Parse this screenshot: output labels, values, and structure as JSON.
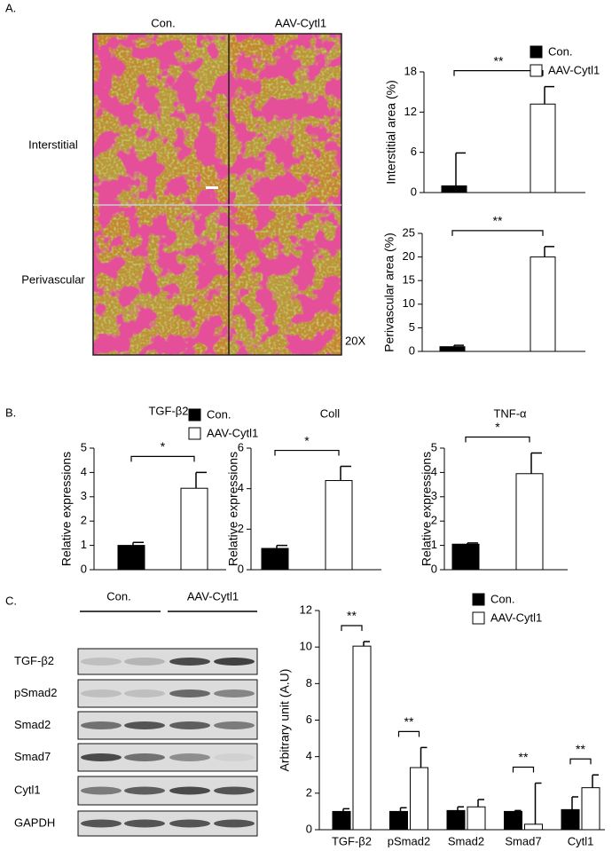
{
  "figure": {
    "panel_labels": [
      "A.",
      "B.",
      "C."
    ],
    "image_columns": [
      "Con.",
      "AAV-Cytl1"
    ],
    "image_rows": [
      "Interstitial",
      "Perivascular"
    ],
    "magnification": "20X",
    "blot_groups": [
      "Con.",
      "AAV-Cytl1"
    ],
    "blot_rows": [
      "TGF-β2",
      "pSmad2",
      "Smad2",
      "Smad7",
      "Cytl1",
      "GAPDH"
    ]
  },
  "chart_data": [
    {
      "type": "bar",
      "y_label": "Interstitial area (%)",
      "categories": [
        null
      ],
      "series": [
        {
          "name": "Con.",
          "color": "#000000",
          "values": [
            1
          ],
          "errors": [
            4.9
          ]
        },
        {
          "name": "AAV-Cytl1",
          "color": "#ffffff",
          "values": [
            13.2
          ],
          "errors": [
            2.6
          ]
        }
      ],
      "ylim": [
        0,
        18
      ],
      "yticks": [
        0,
        6,
        12,
        18
      ],
      "significance": [
        "**"
      ]
    },
    {
      "type": "bar",
      "y_label": "Perivascular area (%)",
      "categories": [
        null
      ],
      "series": [
        {
          "color": "#000000",
          "values": [
            1
          ],
          "errors": [
            0.3
          ]
        },
        {
          "color": "#ffffff",
          "values": [
            20
          ],
          "errors": [
            2.2
          ]
        }
      ],
      "ylim": [
        0,
        25
      ],
      "yticks": [
        0,
        5,
        10,
        15,
        20,
        25
      ],
      "significance": [
        "**"
      ]
    },
    {
      "type": "bar",
      "title": "TGF-β2",
      "y_label": "Relative expressions",
      "categories": [
        null
      ],
      "series": [
        {
          "name": "Con.",
          "color": "#000000",
          "values": [
            1
          ],
          "errors": [
            0.12
          ]
        },
        {
          "name": "AAV-Cytl1",
          "color": "#ffffff",
          "values": [
            3.35
          ],
          "errors": [
            0.65
          ]
        }
      ],
      "ylim": [
        0,
        5
      ],
      "yticks": [
        0,
        1,
        2,
        3,
        4,
        5
      ],
      "significance": [
        "*"
      ]
    },
    {
      "type": "bar",
      "title": "Coll",
      "y_label": "Relative expressions",
      "categories": [
        null
      ],
      "series": [
        {
          "color": "#000000",
          "values": [
            1.05
          ],
          "errors": [
            0.15
          ]
        },
        {
          "color": "#ffffff",
          "values": [
            4.4
          ],
          "errors": [
            0.7
          ]
        }
      ],
      "ylim": [
        0,
        6
      ],
      "yticks": [
        0,
        2,
        4,
        6
      ],
      "significance": [
        "*"
      ]
    },
    {
      "type": "bar",
      "title": "TNF-α",
      "y_label": "Relative expressions",
      "categories": [
        null
      ],
      "series": [
        {
          "color": "#000000",
          "values": [
            1.05
          ],
          "errors": [
            0.05
          ]
        },
        {
          "color": "#ffffff",
          "values": [
            3.95
          ],
          "errors": [
            0.85
          ]
        }
      ],
      "ylim": [
        0,
        5
      ],
      "yticks": [
        0,
        1,
        2,
        3,
        4,
        5
      ],
      "significance": [
        "*"
      ]
    },
    {
      "type": "bar",
      "y_label": "Arbitrary unit (A.U)",
      "categories": [
        "TGF-β2",
        "pSmad2",
        "Smad2",
        "Smad7",
        "Cytl1"
      ],
      "series": [
        {
          "name": "Con.",
          "color": "#000000",
          "values": [
            1.0,
            1.0,
            1.05,
            1.0,
            1.1
          ],
          "errors": [
            0.15,
            0.2,
            0.2,
            0.05,
            0.7
          ]
        },
        {
          "name": "AAV-Cytl1",
          "color": "#ffffff",
          "values": [
            10.05,
            3.4,
            1.25,
            0.3,
            2.3
          ],
          "errors": [
            0.25,
            1.1,
            0.4,
            2.25,
            0.7
          ]
        }
      ],
      "ylim": [
        0,
        12
      ],
      "yticks": [
        0,
        2,
        4,
        6,
        8,
        10,
        12
      ],
      "significance": [
        "**",
        "**",
        null,
        "**",
        "**"
      ]
    }
  ]
}
